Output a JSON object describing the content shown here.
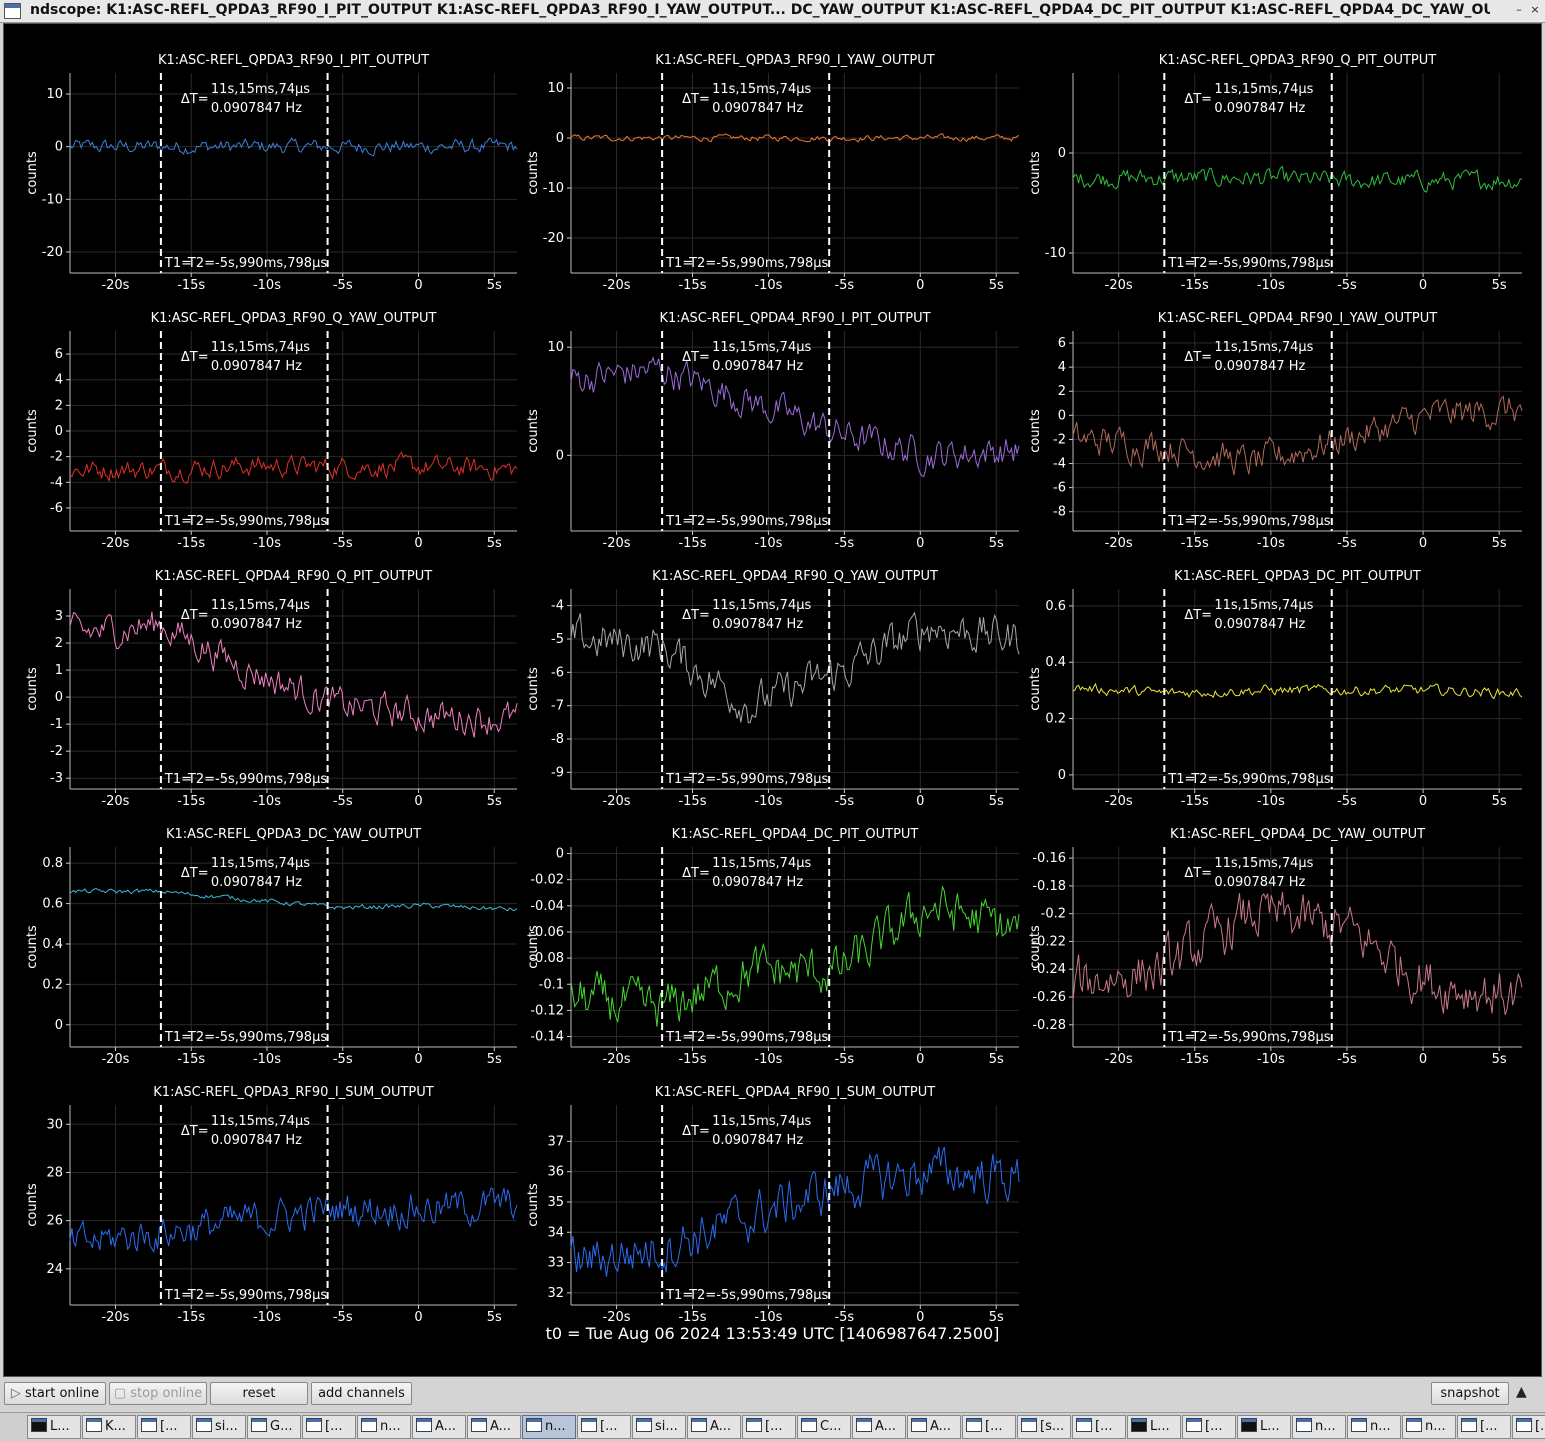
{
  "window": {
    "title": "ndscope: K1:ASC-REFL_QPDA3_RF90_I_PIT_OUTPUT K1:ASC-REFL_QPDA3_RF90_I_YAW_OUTPUT... DC_YAW_OUTPUT K1:ASC-REFL_QPDA4_DC_PIT_OUTPUT K1:ASC-REFL_QPDA4_DC_YAW_OUTPUT",
    "minimize_glyph": "–",
    "maximize_glyph": "▫",
    "close_glyph": "×"
  },
  "cursor": {
    "delta_label": "ΔT=",
    "delta_value": "11s,15ms,74µs",
    "delta_freq": "0.0907847 Hz",
    "t1_label": "T1=",
    "t2_label": "T2=-5s,990ms,798µs",
    "t1_time": -17.0,
    "t2_time": -6.0
  },
  "x_axis": {
    "range": [
      -23,
      6.5
    ],
    "ticks": [
      -20,
      -15,
      -10,
      -5,
      0,
      5
    ],
    "tick_labels": [
      "-20s",
      "-15s",
      "-10s",
      "-5s",
      "0",
      "5s"
    ]
  },
  "y_label": "counts",
  "t0_text": "t0 = Tue Aug 06 2024 13:53:49 UTC [1406987647.2500]",
  "buttons": {
    "start_online": "start online",
    "stop_online": "stop online",
    "reset": "reset",
    "add_channels": "add channels",
    "snapshot": "snapshot"
  },
  "chart_data": [
    {
      "type": "line",
      "title": "K1:ASC-REFL_QPDA3_RF90_I_PIT_OUTPUT",
      "color": "#3d7fd8",
      "ylim": [
        -24,
        14
      ],
      "yticks": [
        10,
        0,
        -10,
        -20
      ],
      "series_profile": [
        0,
        0,
        0,
        0,
        0,
        0
      ],
      "noise": 2.2
    },
    {
      "type": "line",
      "title": "K1:ASC-REFL_QPDA3_RF90_I_YAW_OUTPUT",
      "color": "#f07830",
      "ylim": [
        -27,
        13
      ],
      "yticks": [
        10,
        0,
        -10,
        -20
      ],
      "series_profile": [
        0,
        0,
        0,
        0,
        0,
        0
      ],
      "noise": 1.0
    },
    {
      "type": "line",
      "title": "K1:ASC-REFL_QPDA3_RF90_Q_PIT_OUTPUT",
      "color": "#2fbf40",
      "ylim": [
        -12,
        8
      ],
      "yticks": [
        0,
        -10
      ],
      "series_profile": [
        -2.5,
        -2.5,
        -2.5,
        -2.8,
        -2.8,
        -2.7
      ],
      "noise": 1.5
    },
    {
      "type": "line",
      "title": "K1:ASC-REFL_QPDA3_RF90_Q_YAW_OUTPUT",
      "color": "#e0302a",
      "ylim": [
        -7.8,
        7.8
      ],
      "yticks": [
        6,
        4,
        2,
        0,
        -2,
        -4,
        -6
      ],
      "series_profile": [
        -3,
        -3,
        -2.7,
        -2.8,
        -2.8,
        -3
      ],
      "noise": 1.3
    },
    {
      "type": "line",
      "title": "K1:ASC-REFL_QPDA4_RF90_I_PIT_OUTPUT",
      "color": "#9b6cd8",
      "ylim": [
        -7,
        11.5
      ],
      "yticks": [
        10,
        0
      ],
      "series_profile": [
        7,
        8,
        5,
        2,
        0,
        0.5
      ],
      "noise": 2.5
    },
    {
      "type": "line",
      "title": "K1:ASC-REFL_QPDA4_RF90_I_YAW_OUTPUT",
      "color": "#b06a58",
      "ylim": [
        -9.6,
        7
      ],
      "yticks": [
        6,
        4,
        2,
        0,
        -2,
        -4,
        -6,
        -8
      ],
      "series_profile": [
        -2,
        -2.5,
        -4,
        -2,
        0,
        0.5
      ],
      "noise": 2.2
    },
    {
      "type": "line",
      "title": "K1:ASC-REFL_QPDA4_RF90_Q_PIT_OUTPUT",
      "color": "#ef80c0",
      "ylim": [
        -3.4,
        4
      ],
      "yticks": [
        3,
        2,
        1,
        0,
        -1,
        -2,
        -3
      ],
      "series_profile": [
        2.3,
        2.7,
        1,
        -0.3,
        -0.7,
        -0.8
      ],
      "noise": 1.0
    },
    {
      "type": "line",
      "title": "K1:ASC-REFL_QPDA4_RF90_Q_YAW_OUTPUT",
      "color": "#a8a8a8",
      "ylim": [
        -9.5,
        -3.5
      ],
      "yticks": [
        -4,
        -5,
        -6,
        -7,
        -8,
        -9
      ],
      "series_profile": [
        -5,
        -5.2,
        -7,
        -6,
        -4.6,
        -5
      ],
      "noise": 1.0
    },
    {
      "type": "line",
      "title": "K1:ASC-REFL_QPDA3_DC_PIT_OUTPUT",
      "color": "#e8e83a",
      "ylim": [
        -0.05,
        0.66
      ],
      "yticks": [
        0.6,
        0.4,
        0.2,
        0
      ],
      "series_profile": [
        0.31,
        0.29,
        0.3,
        0.3,
        0.3,
        0.29
      ],
      "noise": 0.03
    },
    {
      "type": "line",
      "title": "K1:ASC-REFL_QPDA3_DC_YAW_OUTPUT",
      "color": "#3cb8d8",
      "ylim": [
        -0.11,
        0.88
      ],
      "yticks": [
        0.8,
        0.6,
        0.4,
        0.2,
        0
      ],
      "series_profile": [
        0.66,
        0.66,
        0.62,
        0.58,
        0.59,
        0.57
      ],
      "noise": 0.02
    },
    {
      "type": "line",
      "title": "K1:ASC-REFL_QPDA4_DC_PIT_OUTPUT",
      "color": "#46d830",
      "ylim": [
        -0.148,
        0.005
      ],
      "yticks": [
        0,
        -0.02,
        -0.04,
        -0.06,
        -0.08,
        -0.1,
        -0.12,
        -0.14
      ],
      "series_profile": [
        -0.11,
        -0.12,
        -0.09,
        -0.09,
        -0.04,
        -0.06
      ],
      "noise": 0.03
    },
    {
      "type": "line",
      "title": "K1:ASC-REFL_QPDA4_DC_YAW_OUTPUT",
      "color": "#c87888",
      "ylim": [
        -0.296,
        -0.152
      ],
      "yticks": [
        -0.16,
        -0.18,
        -0.2,
        -0.22,
        -0.24,
        -0.26,
        -0.28
      ],
      "series_profile": [
        -0.25,
        -0.24,
        -0.2,
        -0.21,
        -0.25,
        -0.26
      ],
      "noise": 0.03
    },
    {
      "type": "line",
      "title": "K1:ASC-REFL_QPDA3_RF90_I_SUM_OUTPUT",
      "color": "#2a6cf0",
      "ylim": [
        22.5,
        30.8
      ],
      "yticks": [
        30,
        28,
        26,
        24
      ],
      "series_profile": [
        25,
        25.5,
        26,
        26.5,
        26.5,
        26.7
      ],
      "noise": 1.2
    },
    {
      "type": "line",
      "title": "K1:ASC-REFL_QPDA4_RF90_I_SUM_OUTPUT",
      "color": "#2a6cf0",
      "ylim": [
        31.6,
        38.2
      ],
      "yticks": [
        37,
        36,
        35,
        34,
        33,
        32
      ],
      "series_profile": [
        33,
        33.5,
        34.5,
        35.5,
        36,
        35.8
      ],
      "noise": 1.3
    }
  ],
  "taskbar": [
    {
      "label": "L...",
      "icon": "terminal-icon"
    },
    {
      "label": "K...",
      "icon": "window-icon"
    },
    {
      "label": "[...",
      "icon": "window-icon"
    },
    {
      "label": "si...",
      "icon": "window-icon"
    },
    {
      "label": "G...",
      "icon": "window-icon"
    },
    {
      "label": "[...",
      "icon": "window-icon"
    },
    {
      "label": "n...",
      "icon": "window-icon"
    },
    {
      "label": "A...",
      "icon": "window-icon"
    },
    {
      "label": "A...",
      "icon": "window-icon"
    },
    {
      "label": "n...",
      "icon": "window-icon",
      "active": true
    },
    {
      "label": "[...",
      "icon": "window-icon"
    },
    {
      "label": "si...",
      "icon": "window-icon"
    },
    {
      "label": "A...",
      "icon": "window-icon"
    },
    {
      "label": "[...",
      "icon": "window-icon"
    },
    {
      "label": "C...",
      "icon": "window-icon"
    },
    {
      "label": "A...",
      "icon": "window-icon"
    },
    {
      "label": "A...",
      "icon": "window-icon"
    },
    {
      "label": "[...",
      "icon": "window-icon"
    },
    {
      "label": "[s...",
      "icon": "window-icon"
    },
    {
      "label": "[...",
      "icon": "window-icon"
    },
    {
      "label": "L...",
      "icon": "terminal-icon"
    },
    {
      "label": "[...",
      "icon": "window-icon"
    },
    {
      "label": "L...",
      "icon": "terminal-icon"
    },
    {
      "label": "n...",
      "icon": "window-icon"
    },
    {
      "label": "n...",
      "icon": "window-icon"
    },
    {
      "label": "n...",
      "icon": "window-icon"
    },
    {
      "label": "[...",
      "icon": "window-icon"
    },
    {
      "label": "[...",
      "icon": "window-icon"
    }
  ]
}
